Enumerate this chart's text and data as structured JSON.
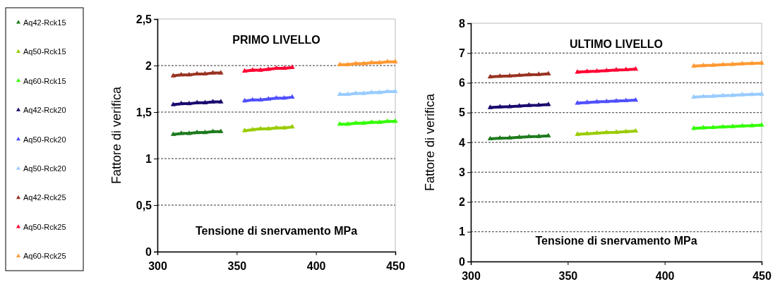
{
  "chart_data": [
    {
      "type": "line",
      "title": "PRIMO LIVELLO",
      "xlabel": "Tensione di snervamento MPa",
      "ylabel": "Fattore di verifica",
      "xlim": [
        300,
        450
      ],
      "xticks": [
        300,
        350,
        400,
        450
      ],
      "ylim": [
        0,
        2.5
      ],
      "yticks": [
        0,
        {
          "value": 0.5,
          "label": "0,5"
        },
        1,
        {
          "value": 1.5,
          "label": "1,5"
        },
        2,
        {
          "value": 2.5,
          "label": "2,5"
        }
      ],
      "grid": "y",
      "legend": "left",
      "marker": "triangle",
      "series": [
        {
          "name": "Aq42-Rck15",
          "color": "#1e7b1e",
          "x": [
            310,
            315,
            320,
            325,
            330,
            335,
            340
          ],
          "values": [
            1.26,
            1.27,
            1.27,
            1.28,
            1.28,
            1.29,
            1.29
          ]
        },
        {
          "name": "Aq50-Rck15",
          "color": "#99cc00",
          "x": [
            355,
            360,
            365,
            370,
            375,
            380,
            385
          ],
          "values": [
            1.3,
            1.31,
            1.32,
            1.32,
            1.33,
            1.33,
            1.34
          ]
        },
        {
          "name": "Aq60-Rck15",
          "color": "#33ff00",
          "x": [
            415,
            420,
            425,
            430,
            435,
            440,
            445,
            450
          ],
          "values": [
            1.37,
            1.37,
            1.38,
            1.38,
            1.39,
            1.39,
            1.4,
            1.4
          ]
        },
        {
          "name": "Aq42-Rck20",
          "color": "#1a0a6e",
          "x": [
            310,
            315,
            320,
            325,
            330,
            335,
            340
          ],
          "values": [
            1.58,
            1.59,
            1.59,
            1.6,
            1.6,
            1.61,
            1.61
          ]
        },
        {
          "name": "Aq50-Rck20",
          "color": "#5050ff",
          "x": [
            355,
            360,
            365,
            370,
            375,
            380,
            385
          ],
          "values": [
            1.62,
            1.63,
            1.63,
            1.64,
            1.65,
            1.65,
            1.66
          ]
        },
        {
          "name": "Aq50-Rck20",
          "color": "#99ccff",
          "x": [
            415,
            420,
            425,
            430,
            435,
            440,
            445,
            450
          ],
          "values": [
            1.69,
            1.69,
            1.7,
            1.7,
            1.71,
            1.71,
            1.72,
            1.72
          ]
        },
        {
          "name": "Aq42-Rck25",
          "color": "#993322",
          "x": [
            310,
            315,
            320,
            325,
            330,
            335,
            340
          ],
          "values": [
            1.89,
            1.9,
            1.9,
            1.91,
            1.91,
            1.92,
            1.92
          ]
        },
        {
          "name": "Aq50-Rck25",
          "color": "#ff0033",
          "x": [
            355,
            360,
            365,
            370,
            375,
            380,
            385
          ],
          "values": [
            1.94,
            1.95,
            1.95,
            1.96,
            1.97,
            1.97,
            1.98
          ]
        },
        {
          "name": "Aq60-Rck25",
          "color": "#ff9933",
          "x": [
            415,
            420,
            425,
            430,
            435,
            440,
            445,
            450
          ],
          "values": [
            2.01,
            2.01,
            2.02,
            2.02,
            2.03,
            2.03,
            2.04,
            2.04
          ]
        }
      ]
    },
    {
      "type": "line",
      "title": "ULTIMO LIVELLO",
      "xlabel": "Tensione di snervamento MPa",
      "ylabel": "Fattore di verifica",
      "xlim": [
        300,
        450
      ],
      "xticks": [
        300,
        350,
        400,
        450
      ],
      "ylim": [
        0,
        8
      ],
      "yticks": [
        0,
        1,
        2,
        3,
        4,
        5,
        6,
        7,
        8
      ],
      "grid": "y",
      "marker": "triangle",
      "series": [
        {
          "color": "#1e7b1e",
          "x": [
            310,
            315,
            320,
            325,
            330,
            335,
            340
          ],
          "values": [
            4.12,
            4.14,
            4.15,
            4.17,
            4.19,
            4.2,
            4.22
          ]
        },
        {
          "color": "#99cc00",
          "x": [
            355,
            360,
            365,
            370,
            375,
            380,
            385
          ],
          "values": [
            4.27,
            4.29,
            4.31,
            4.33,
            4.34,
            4.36,
            4.38
          ]
        },
        {
          "color": "#33ff00",
          "x": [
            415,
            420,
            425,
            430,
            435,
            440,
            445,
            450
          ],
          "values": [
            4.47,
            4.49,
            4.5,
            4.52,
            4.53,
            4.55,
            4.56,
            4.58
          ]
        },
        {
          "color": "#1a0a6e",
          "x": [
            310,
            315,
            320,
            325,
            330,
            335,
            340
          ],
          "values": [
            5.17,
            5.19,
            5.2,
            5.22,
            5.24,
            5.25,
            5.27
          ]
        },
        {
          "color": "#5050ff",
          "x": [
            355,
            360,
            365,
            370,
            375,
            380,
            385
          ],
          "values": [
            5.32,
            5.34,
            5.36,
            5.37,
            5.39,
            5.4,
            5.42
          ]
        },
        {
          "color": "#99ccff",
          "x": [
            415,
            420,
            425,
            430,
            435,
            440,
            445,
            450
          ],
          "values": [
            5.52,
            5.54,
            5.55,
            5.57,
            5.58,
            5.6,
            5.61,
            5.62
          ]
        },
        {
          "color": "#993322",
          "x": [
            310,
            315,
            320,
            325,
            330,
            335,
            340
          ],
          "values": [
            6.2,
            6.22,
            6.23,
            6.25,
            6.27,
            6.28,
            6.3
          ]
        },
        {
          "color": "#ff0033",
          "x": [
            355,
            360,
            365,
            370,
            375,
            380,
            385
          ],
          "values": [
            6.36,
            6.38,
            6.39,
            6.41,
            6.43,
            6.44,
            6.46
          ]
        },
        {
          "color": "#ff9933",
          "x": [
            415,
            420,
            425,
            430,
            435,
            440,
            445,
            450
          ],
          "values": [
            6.56,
            6.58,
            6.59,
            6.61,
            6.62,
            6.64,
            6.65,
            6.66
          ]
        }
      ]
    }
  ]
}
